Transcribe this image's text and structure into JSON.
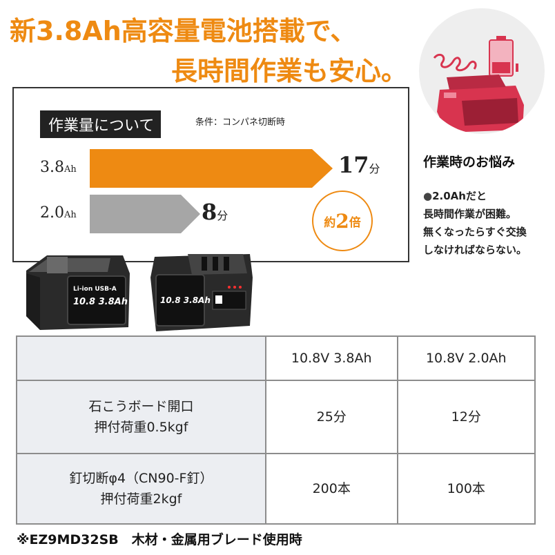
{
  "headline": {
    "line1": "新3.8Ah高容量電池搭載で、",
    "line2": "長時間作業も安心。"
  },
  "worry": {
    "title": "作業時のお悩み",
    "bullet": "●",
    "lines": [
      "2.0Ahだと",
      "長時間作業が困難。",
      "無くなったらすぐ交換",
      "しなければならない。"
    ]
  },
  "graph": {
    "label": "作業量について",
    "condition": "条件：コンパネ切断時",
    "rows": [
      {
        "voltage": "3.8",
        "unit": "Ah",
        "time": "17",
        "time_unit": "分"
      },
      {
        "voltage": "2.0",
        "unit": "Ah",
        "time": "8",
        "time_unit": "分"
      }
    ],
    "badge": {
      "prefix": "約",
      "value": "2",
      "suffix": "倍"
    }
  },
  "batteries": [
    {
      "text1": "Li-ion",
      "text2": "USB-A",
      "text3": "10.8",
      "text4": "3.8Ah"
    },
    {
      "text1": "10.8",
      "text2": "3.8Ah"
    }
  ],
  "table": {
    "headers": [
      "",
      "10.8V 3.8Ah",
      "10.8V 2.0Ah"
    ],
    "rows": [
      {
        "label1": "石こうボード開口",
        "label2": "押付荷重0.5kgf",
        "v1": "25分",
        "v2": "12分"
      },
      {
        "label1": "釘切断φ4（CN90-F釘）",
        "label2": "押付荷重2kgf",
        "v1": "200本",
        "v2": "100本"
      }
    ]
  },
  "footnote": "※EZ9MD32SB　木材・金属用ブレード使用時",
  "colors": {
    "accent": "#ee8a12",
    "bar_gray": "#a6a6a6",
    "battery_red": "#d8344f"
  }
}
